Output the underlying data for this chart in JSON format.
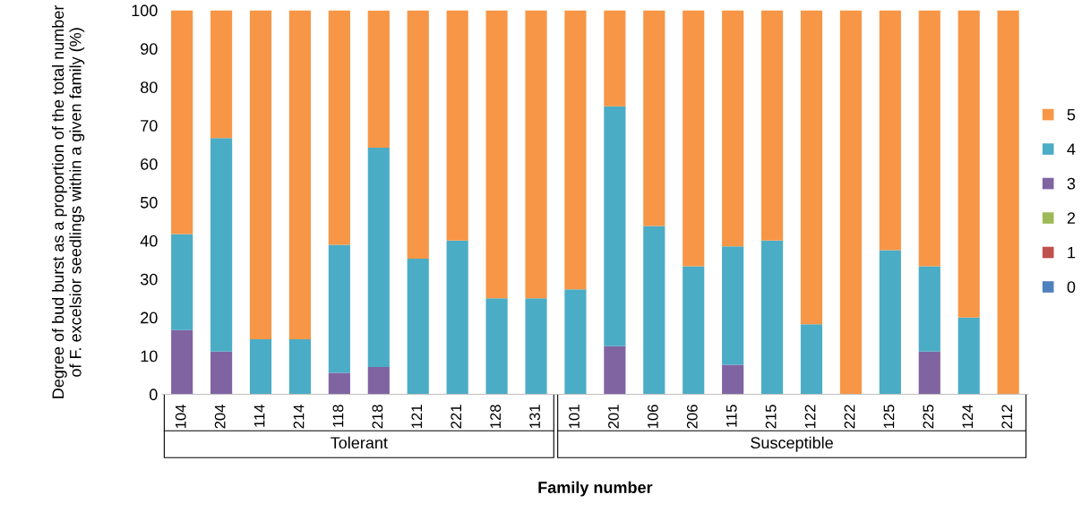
{
  "chart_data": {
    "type": "bar",
    "stacked": true,
    "xlabel": "Family number",
    "ylabel": "Degree of bud burst as a proportion of the total number of F. excelsior seedlings within a given family (%)",
    "categories": [
      "104",
      "204",
      "114",
      "214",
      "118",
      "218",
      "121",
      "221",
      "128",
      "131",
      "101",
      "201",
      "106",
      "206",
      "115",
      "215",
      "122",
      "222",
      "125",
      "225",
      "124",
      "212"
    ],
    "ylim": [
      0,
      100
    ],
    "yticks": [
      0,
      10,
      20,
      30,
      40,
      50,
      60,
      70,
      80,
      90,
      100
    ],
    "legend": "right",
    "grid": false,
    "annotations": [
      "Tolerant",
      "Susceptible"
    ],
    "series": [
      {
        "name": "0",
        "color": "#4f81bd",
        "values": [
          0,
          0,
          0,
          0,
          0,
          0,
          0,
          0,
          0,
          0,
          0,
          0,
          0,
          0,
          0,
          0,
          0,
          0,
          0,
          0,
          0,
          0
        ]
      },
      {
        "name": "1",
        "color": "#c0504d",
        "values": [
          0,
          0,
          0,
          0,
          0,
          0,
          0,
          0,
          0,
          0,
          0,
          0,
          0,
          0,
          0,
          0,
          0,
          0,
          0,
          0,
          0,
          0
        ]
      },
      {
        "name": "2",
        "color": "#9bbb59",
        "values": [
          0,
          0,
          0,
          0,
          0,
          0,
          0,
          0,
          0,
          0,
          0,
          0,
          0,
          0,
          0,
          0,
          0,
          0,
          0,
          0,
          0,
          0
        ]
      },
      {
        "name": "3",
        "color": "#8064a2",
        "values": [
          16.7,
          11.1,
          0,
          0,
          5.6,
          7.1,
          0,
          0,
          0,
          0,
          0,
          12.5,
          0,
          0,
          7.7,
          0,
          0,
          0,
          0,
          11.1,
          0,
          0
        ]
      },
      {
        "name": "4",
        "color": "#4bacc6",
        "values": [
          25,
          55.6,
          14.3,
          14.3,
          33.3,
          57.1,
          35.3,
          40,
          25,
          25,
          27.3,
          62.5,
          43.8,
          33.3,
          30.8,
          40,
          18.2,
          0,
          37.5,
          22.2,
          20,
          0
        ]
      },
      {
        "name": "5",
        "color": "#f79646",
        "values": [
          58.3,
          33.3,
          85.7,
          85.7,
          61.1,
          35.7,
          64.7,
          60,
          75,
          75,
          72.7,
          25,
          56.2,
          66.7,
          61.5,
          60,
          81.8,
          100,
          62.5,
          66.7,
          80,
          100
        ]
      }
    ]
  }
}
